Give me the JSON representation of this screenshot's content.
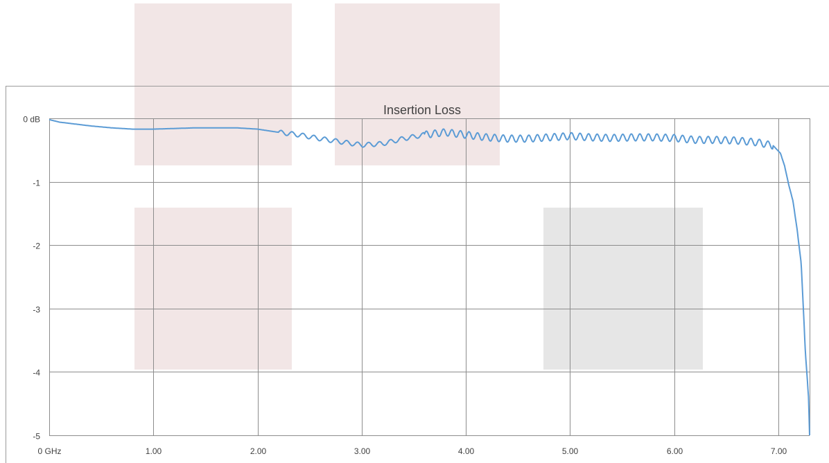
{
  "chart_data": {
    "type": "line",
    "title": "Insertion Loss",
    "xlabel": "",
    "ylabel": "",
    "xlim": [
      0,
      7.3
    ],
    "ylim": [
      -5,
      0
    ],
    "x_ticks": [
      {
        "value": 0,
        "label": "0 GHz"
      },
      {
        "value": 1,
        "label": "1.00"
      },
      {
        "value": 2,
        "label": "2.00"
      },
      {
        "value": 3,
        "label": "3.00"
      },
      {
        "value": 4,
        "label": "4.00"
      },
      {
        "value": 5,
        "label": "5.00"
      },
      {
        "value": 6,
        "label": "6.00"
      },
      {
        "value": 7,
        "label": "7.00"
      }
    ],
    "y_ticks": [
      {
        "value": 0,
        "label": "0 dB"
      },
      {
        "value": -1,
        "label": "-1"
      },
      {
        "value": -2,
        "label": "-2"
      },
      {
        "value": -3,
        "label": "-3"
      },
      {
        "value": -4,
        "label": "-4"
      },
      {
        "value": -5,
        "label": "-5"
      }
    ],
    "grid": true,
    "legend": "none",
    "series": [
      {
        "color": "#5b9bd5",
        "ripple": [
          {
            "from": 2.2,
            "to": 3.6,
            "period": 0.105,
            "amp": 0.035
          },
          {
            "from": 3.6,
            "to": 6.95,
            "period": 0.082,
            "amp": 0.055
          }
        ],
        "points": [
          [
            0.0,
            -0.02
          ],
          [
            0.1,
            -0.06
          ],
          [
            0.25,
            -0.09
          ],
          [
            0.4,
            -0.12
          ],
          [
            0.6,
            -0.15
          ],
          [
            0.8,
            -0.17
          ],
          [
            1.0,
            -0.17
          ],
          [
            1.2,
            -0.16
          ],
          [
            1.4,
            -0.15
          ],
          [
            1.6,
            -0.15
          ],
          [
            1.8,
            -0.15
          ],
          [
            2.0,
            -0.17
          ],
          [
            2.2,
            -0.22
          ],
          [
            2.4,
            -0.26
          ],
          [
            2.6,
            -0.32
          ],
          [
            2.8,
            -0.37
          ],
          [
            3.0,
            -0.42
          ],
          [
            3.2,
            -0.4
          ],
          [
            3.4,
            -0.32
          ],
          [
            3.6,
            -0.26
          ],
          [
            3.8,
            -0.22
          ],
          [
            4.0,
            -0.26
          ],
          [
            4.2,
            -0.3
          ],
          [
            4.4,
            -0.32
          ],
          [
            4.6,
            -0.32
          ],
          [
            4.8,
            -0.3
          ],
          [
            5.0,
            -0.28
          ],
          [
            5.2,
            -0.3
          ],
          [
            5.4,
            -0.31
          ],
          [
            5.6,
            -0.3
          ],
          [
            5.8,
            -0.3
          ],
          [
            6.0,
            -0.31
          ],
          [
            6.2,
            -0.34
          ],
          [
            6.4,
            -0.34
          ],
          [
            6.6,
            -0.35
          ],
          [
            6.8,
            -0.38
          ],
          [
            6.95,
            -0.43
          ],
          [
            7.02,
            -0.55
          ],
          [
            7.06,
            -0.75
          ],
          [
            7.1,
            -1.05
          ],
          [
            7.14,
            -1.3
          ],
          [
            7.18,
            -1.75
          ],
          [
            7.22,
            -2.3
          ],
          [
            7.26,
            -3.7
          ],
          [
            7.29,
            -4.4
          ],
          [
            7.3,
            -5.0
          ]
        ]
      }
    ]
  },
  "overlays": [
    {
      "color": "#f2e6e6"
    },
    {
      "color": "#f2e6e6"
    },
    {
      "color": "#f2e6e6"
    },
    {
      "color": "#e6e6e6"
    }
  ]
}
